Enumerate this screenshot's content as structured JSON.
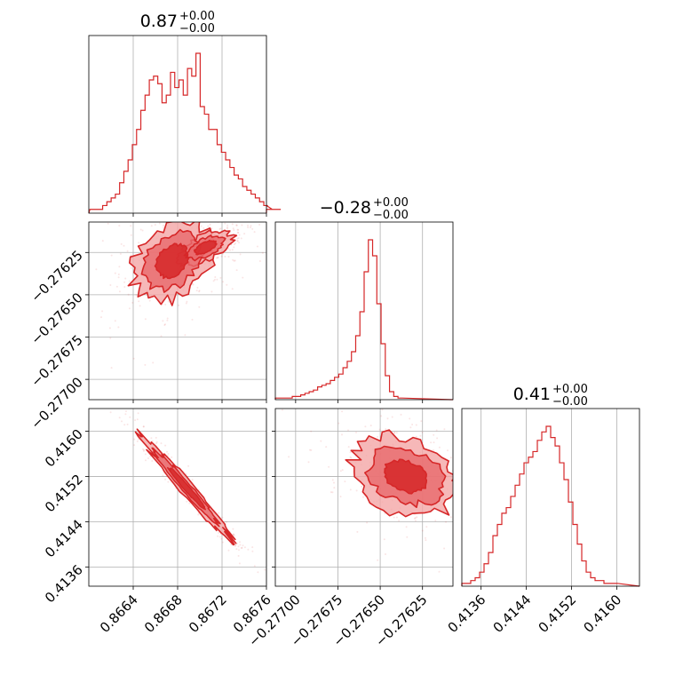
{
  "chart_data": {
    "type": "corner",
    "parameters": [
      {
        "title_value": "0.87",
        "title_plus": "+0.00",
        "title_minus": "−0.00",
        "range": [
          0.866,
          0.8676
        ],
        "ticks": [
          0.8664,
          0.8668,
          0.8672,
          0.8676
        ],
        "tick_labels": [
          "0.8664",
          "0.8668",
          "0.8672",
          "0.8676"
        ],
        "hist": {
          "start": 0.86601,
          "width": 3.82e-05,
          "counts": [
            1,
            1,
            1,
            2,
            3,
            4,
            5,
            8,
            11,
            14,
            18,
            22,
            27,
            31,
            35,
            36,
            34,
            29,
            31,
            37,
            33,
            35,
            31,
            38,
            36,
            42,
            28,
            26,
            22,
            22,
            18,
            16,
            14,
            12,
            10,
            9,
            7,
            6,
            5,
            4,
            3,
            2,
            2,
            1,
            1,
            1
          ]
        }
      },
      {
        "title_value": "−0.28",
        "title_plus": "+0.00",
        "title_minus": "−0.00",
        "range": [
          -0.27712,
          -0.27607
        ],
        "ticks": [
          -0.277,
          -0.27675,
          -0.2765,
          -0.27625
        ],
        "tick_labels": [
          "−0.27700",
          "−0.27675",
          "−0.27650",
          "−0.27625"
        ],
        "hist": {
          "start": -0.27712,
          "width": 2.5e-05,
          "counts": [
            1,
            1,
            1,
            1,
            2,
            2,
            3,
            4,
            5,
            6,
            8,
            9,
            10,
            12,
            14,
            16,
            20,
            24,
            30,
            40,
            55,
            80,
            100,
            90,
            60,
            35,
            15,
            5,
            2,
            1
          ]
        }
      },
      {
        "title_value": "0.41",
        "title_plus": "+0.00",
        "title_minus": "−0.00",
        "range": [
          0.41326,
          0.4164
        ],
        "ticks": [
          0.4136,
          0.4144,
          0.4152,
          0.416
        ],
        "tick_labels": [
          "0.4136",
          "0.4144",
          "0.4152",
          "0.4160"
        ],
        "hist": {
          "start": 0.41326,
          "width": 7.85e-05,
          "counts": [
            1,
            1,
            2,
            3,
            5,
            8,
            12,
            18,
            22,
            26,
            28,
            32,
            36,
            40,
            44,
            46,
            48,
            52,
            55,
            57,
            53,
            50,
            44,
            38,
            30,
            22,
            15,
            9,
            5,
            3,
            2,
            2,
            1,
            1,
            1
          ]
        }
      }
    ],
    "scatter_blobs": {
      "0_1": [
        {
          "cx": 0.86675,
          "cy": -0.2763,
          "sx": 0.00018,
          "sy": 0.00012,
          "rho": 0.3
        },
        {
          "cx": 0.86705,
          "cy": -0.27622,
          "sx": 0.00012,
          "sy": 5e-05,
          "rho": 0.6
        }
      ],
      "0_2": [
        {
          "cx": 0.86688,
          "cy": 0.415,
          "sx": 0.0002,
          "sy": 0.00045,
          "rho": -0.98
        }
      ],
      "1_2": [
        {
          "cx": -0.27635,
          "cy": 0.4152,
          "sx": 0.00016,
          "sy": 0.00035,
          "rho": -0.25
        }
      ]
    },
    "colors": {
      "main": "#d62728",
      "fill_light": "#f4a6a6",
      "fill_mid": "#e8696b",
      "grid": "#b0b0b0"
    },
    "grid": true
  }
}
